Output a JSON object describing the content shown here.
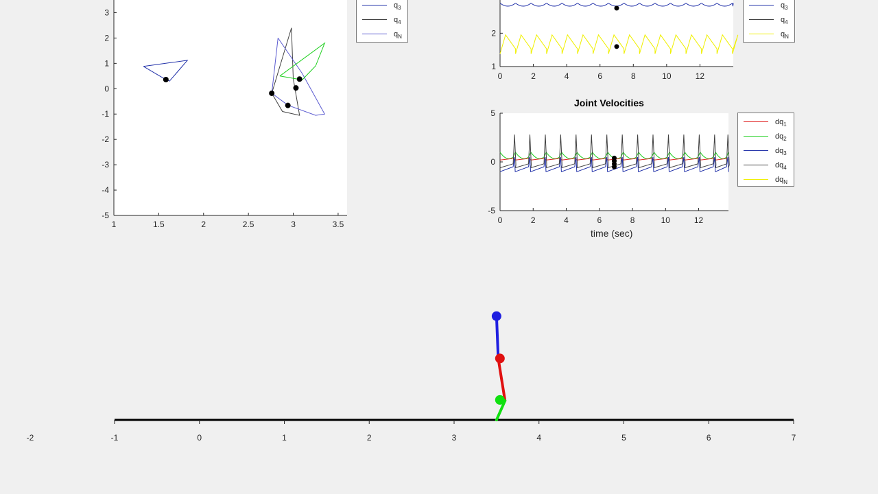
{
  "phase_plot": {
    "x_ticks": [
      "1",
      "1.5",
      "2",
      "2.5",
      "3",
      "3.5"
    ],
    "y_ticks": [
      "3",
      "2",
      "1",
      "0",
      "-1",
      "-2",
      "-3",
      "-4",
      "-5"
    ],
    "legend": [
      {
        "base": "q",
        "sub": "3",
        "color": "#1f2fa8"
      },
      {
        "base": "q",
        "sub": "4",
        "color": "#404040"
      },
      {
        "base": "q",
        "sub": "N",
        "color": "#5a5ad0"
      }
    ]
  },
  "joint_angles": {
    "x_ticks": [
      "0",
      "2",
      "4",
      "6",
      "8",
      "10",
      "12"
    ],
    "y_ticks": [
      "2",
      "1"
    ],
    "legend": [
      {
        "base": "q",
        "sub": "3",
        "color": "#1f2fa8"
      },
      {
        "base": "q",
        "sub": "4",
        "color": "#404040"
      },
      {
        "base": "q",
        "sub": "N",
        "color": "#f0f000"
      }
    ]
  },
  "joint_velocities": {
    "title": "Joint Velocities",
    "xlabel": "time (sec)",
    "x_ticks": [
      "0",
      "2",
      "4",
      "6",
      "8",
      "10",
      "12"
    ],
    "y_ticks": [
      "5",
      "0",
      "-5"
    ],
    "legend": [
      {
        "base": "dq",
        "sub": "1",
        "color": "#e02020"
      },
      {
        "base": "dq",
        "sub": "2",
        "color": "#20d020"
      },
      {
        "base": "dq",
        "sub": "3",
        "color": "#1f2fa8"
      },
      {
        "base": "dq",
        "sub": "4",
        "color": "#404040"
      },
      {
        "base": "dq",
        "sub": "N",
        "color": "#f0f000"
      }
    ]
  },
  "animation": {
    "x_ticks": [
      "-2",
      "-1",
      "0",
      "1",
      "2",
      "3",
      "4",
      "5",
      "6",
      "7"
    ]
  },
  "chart_data": [
    {
      "type": "line",
      "xlim": [
        1,
        3.6
      ],
      "ylim": [
        -5,
        3.5
      ],
      "series": [
        {
          "color": "#1f2fa8",
          "points": [
            [
              1.33,
              0.88
            ],
            [
              1.82,
              1.12
            ],
            [
              1.62,
              0.3
            ],
            [
              1.58,
              0.36
            ],
            [
              1.33,
              0.88
            ]
          ]
        },
        {
          "color": "#404040",
          "points": [
            [
              2.76,
              -0.18
            ],
            [
              2.98,
              2.4
            ],
            [
              3.0,
              0.4
            ],
            [
              3.07,
              -1.05
            ],
            [
              2.88,
              -0.9
            ],
            [
              2.76,
              -0.18
            ]
          ]
        },
        {
          "color": "#5a5ad0",
          "points": [
            [
              2.83,
              2.0
            ],
            [
              3.1,
              0.6
            ],
            [
              3.35,
              -1.0
            ],
            [
              3.25,
              -1.05
            ],
            [
              2.94,
              -0.65
            ],
            [
              2.76,
              -0.18
            ],
            [
              2.83,
              2.0
            ]
          ]
        },
        {
          "color": "#20d020",
          "points": [
            [
              2.85,
              0.5
            ],
            [
              3.35,
              1.8
            ],
            [
              3.25,
              0.9
            ],
            [
              3.1,
              0.35
            ],
            [
              2.85,
              0.5
            ]
          ]
        }
      ],
      "markers": [
        [
          1.58,
          0.36
        ],
        [
          2.76,
          -0.18
        ],
        [
          2.94,
          -0.66
        ],
        [
          3.03,
          0.03
        ],
        [
          3.07,
          0.38
        ]
      ]
    },
    {
      "type": "line",
      "xlim": [
        0,
        14
      ],
      "ylim": [
        1,
        3
      ],
      "x_period": 0.93,
      "series": [
        {
          "color": "#f0f000",
          "pattern": "sawtooth",
          "low": 1.38,
          "high": 1.95
        },
        {
          "color": "#1f2fa8",
          "pattern": "arc",
          "low": 2.72,
          "high": 2.9
        }
      ],
      "markers": [
        [
          7.0,
          2.75
        ],
        [
          7.0,
          1.6
        ]
      ]
    },
    {
      "type": "line",
      "title": "Joint Velocities",
      "xlabel": "time (sec)",
      "xlim": [
        0,
        13.8
      ],
      "ylim": [
        -5,
        5
      ],
      "x_period": 0.93,
      "series": [
        {
          "color": "#20d020",
          "pattern": "dip",
          "base": 0.5,
          "amp": 0.5
        },
        {
          "color": "#e02020",
          "pattern": "flat",
          "base": 0.2,
          "amp": 0.15
        },
        {
          "color": "#1f2fa8",
          "pattern": "ramp",
          "base": -1.0,
          "amp": 1.5
        },
        {
          "color": "#404040",
          "pattern": "spike",
          "base": -0.6,
          "amp": 2.8
        }
      ],
      "markers": [
        [
          6.9,
          0.4
        ],
        [
          6.9,
          0.1
        ],
        [
          6.9,
          -0.2
        ],
        [
          6.9,
          -0.5
        ]
      ]
    },
    {
      "type": "line",
      "xlim": [
        -1,
        7
      ],
      "walker": {
        "hip_x": 3.52,
        "links": [
          {
            "color": "#1f1fe0",
            "from": [
              3.5,
              2.7
            ],
            "to": [
              3.52,
              1.6
            ]
          },
          {
            "color": "#e01010",
            "from": [
              3.52,
              1.6
            ],
            "to": [
              3.6,
              0.5
            ]
          },
          {
            "color": "#10e010",
            "from": [
              3.6,
              0.5
            ],
            "to": [
              3.5,
              0.0
            ]
          }
        ],
        "joints": [
          {
            "color": "#1f1fe0",
            "at": [
              3.5,
              2.7
            ]
          },
          {
            "color": "#e01010",
            "at": [
              3.54,
              1.6
            ]
          },
          {
            "color": "#10e010",
            "at": [
              3.54,
              0.52
            ]
          }
        ]
      }
    }
  ]
}
